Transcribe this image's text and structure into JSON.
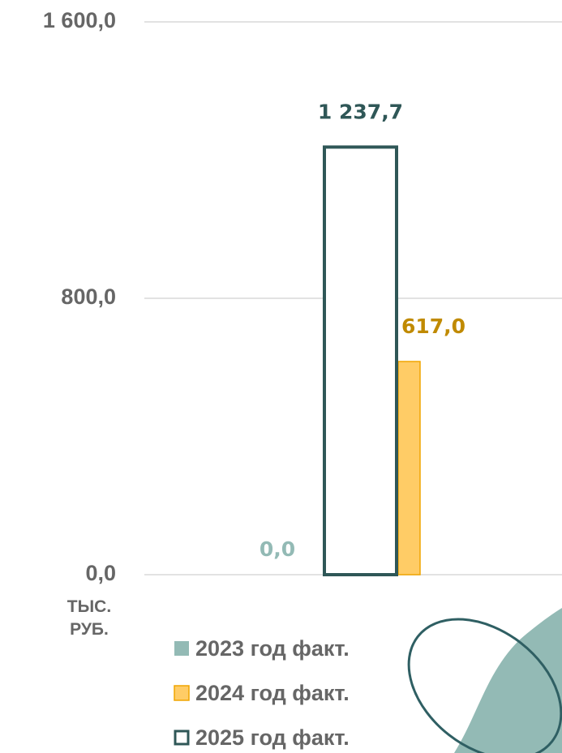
{
  "chart_data": {
    "type": "bar",
    "categories": [
      null
    ],
    "series": [
      {
        "name": "2023 год факт.",
        "color": "#93bab5",
        "values": [
          0
        ],
        "value_labels": [
          "0,0"
        ]
      },
      {
        "name": "2024 год факт.",
        "color": "#ffcc66",
        "values": [
          617.0
        ],
        "value_labels": [
          "617,0"
        ]
      },
      {
        "name": "2025 год факт.",
        "color": "#2f5757",
        "outline": true,
        "values": [
          1237.7
        ],
        "value_labels": [
          "1 237,7"
        ]
      }
    ],
    "ylabel": "ТЫС. РУБ.",
    "ylim": [
      0,
      1600
    ],
    "yticks": [
      {
        "value": 0,
        "label": "0,0"
      },
      {
        "value": 800,
        "label": "800,0"
      },
      {
        "value": 1600,
        "label": "1 600,0"
      }
    ],
    "grid": true,
    "legend": "bottom-left"
  }
}
